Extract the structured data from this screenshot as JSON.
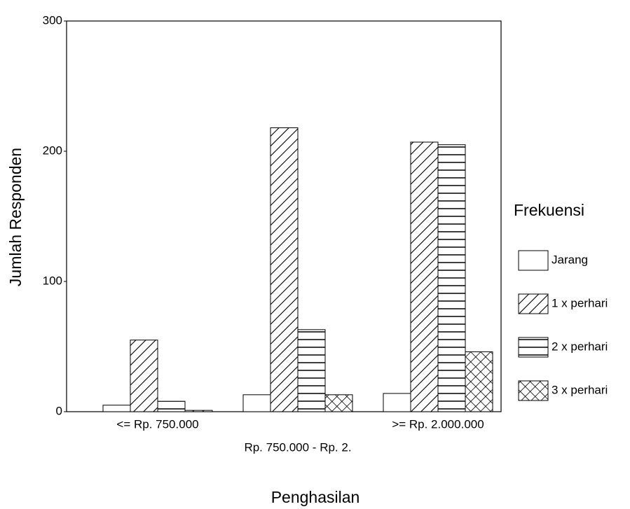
{
  "chart_data": {
    "type": "bar",
    "x_label": "Penghasilan",
    "y_label": "Jumlah Responden",
    "categories": [
      "<= Rp. 750.000",
      "Rp. 750.000 - Rp. 2.",
      ">= Rp. 2.000.000"
    ],
    "legend_title": "Frekuensi",
    "series": [
      {
        "name": "Jarang",
        "color": "#000000",
        "values": [
          5,
          13,
          14
        ]
      },
      {
        "name": "1 x perhari",
        "color": "#000000",
        "values": [
          55,
          218,
          207
        ]
      },
      {
        "name": "2 x perhari",
        "color": "#000000",
        "values": [
          8,
          63,
          205
        ]
      },
      {
        "name": "3 x perhari",
        "color": "#000000",
        "values": [
          1,
          13,
          46
        ]
      }
    ],
    "ylim": [
      0,
      300
    ],
    "yticks": [
      0,
      100,
      200,
      300
    ],
    "legend": "right"
  }
}
